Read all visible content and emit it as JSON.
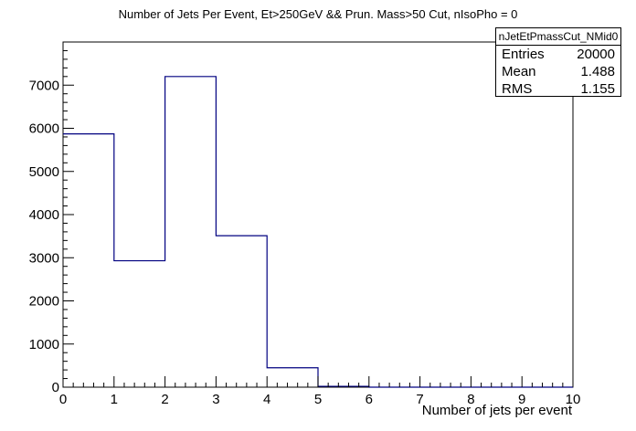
{
  "chart_data": {
    "type": "bar",
    "title": "Number of Jets Per Event, Et>250GeV && Prun. Mass>50 Cut, nIsoPho = 0",
    "xlabel": "Number of jets per event",
    "ylabel": "",
    "bin_edges": [
      0,
      1,
      2,
      3,
      4,
      5,
      6,
      7,
      8,
      9,
      10
    ],
    "values": [
      5870,
      2930,
      7200,
      3510,
      450,
      20,
      0,
      0,
      0,
      0
    ],
    "xlim": [
      0,
      10
    ],
    "ylim": [
      0,
      8000
    ],
    "x_ticks": [
      "0",
      "1",
      "2",
      "3",
      "4",
      "5",
      "6",
      "7",
      "8",
      "9",
      "10"
    ],
    "y_ticks": [
      "0",
      "1000",
      "2000",
      "3000",
      "4000",
      "5000",
      "6000",
      "7000"
    ],
    "line_color": "#000080",
    "grid": false,
    "legend_placement": "top-right"
  },
  "stats": {
    "name": "nJetEtPmassCut_NMid0",
    "rows": [
      {
        "label": "Entries",
        "value": "20000"
      },
      {
        "label": "Mean",
        "value": "1.488"
      },
      {
        "label": "RMS",
        "value": "1.155"
      }
    ]
  }
}
